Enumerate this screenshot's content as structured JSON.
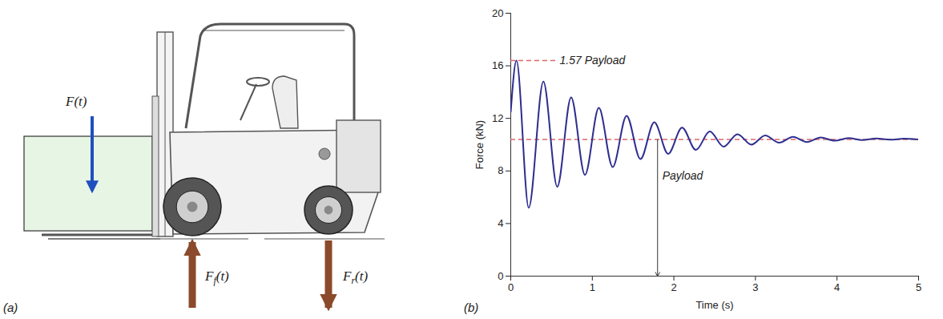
{
  "diagram": {
    "panel_label": "(a)",
    "forces": [
      {
        "symbol": "F",
        "argument": "(t)",
        "color": "#1f4fbf",
        "direction": "down"
      },
      {
        "symbol": "F",
        "subscript": "f",
        "argument": "(t)",
        "color": "#8b4a2b",
        "direction": "up"
      },
      {
        "symbol": "F",
        "subscript": "r",
        "argument": "(t)",
        "color": "#8b4a2b",
        "direction": "down"
      }
    ]
  },
  "chart_data": {
    "type": "line",
    "panel_label": "(b)",
    "x_label": "Time (s)",
    "y_label": "Force (kN)",
    "x": [
      0,
      0.07,
      0.22,
      0.4,
      0.57,
      0.74,
      0.91,
      1.08,
      1.25,
      1.42,
      1.59,
      1.76,
      1.93,
      2.1,
      2.27,
      2.44,
      2.61,
      2.78,
      2.95,
      3.12,
      3.29,
      3.46,
      3.63,
      3.8,
      3.97,
      4.14,
      4.31,
      4.48,
      4.65,
      4.82,
      5.0
    ],
    "series": [
      {
        "color": "#2e2e8f",
        "values": [
          12.5,
          16.4,
          5.2,
          14.8,
          6.8,
          13.6,
          7.7,
          12.8,
          8.3,
          12.2,
          8.9,
          11.7,
          9.3,
          11.3,
          9.6,
          11.0,
          9.85,
          10.8,
          10.0,
          10.7,
          10.15,
          10.6,
          10.2,
          10.55,
          10.3,
          10.5,
          10.35,
          10.48,
          10.38,
          10.45,
          10.4
        ]
      }
    ],
    "reference_lines": [
      {
        "value": 16.4,
        "label": "1.57 Payload",
        "label_x": 0.55,
        "color": "#e06666",
        "line_style": "dashed"
      },
      {
        "value": 10.4,
        "label": "Payload",
        "label_x": 1.8,
        "label_y": 7.6,
        "color": "#e06666",
        "line_style": "dashed"
      }
    ],
    "xlim": [
      0,
      5
    ],
    "xticks": [
      0,
      1,
      2,
      3,
      4,
      5
    ],
    "ylim": [
      0,
      20
    ],
    "yticks": [
      0,
      4,
      8,
      12,
      16,
      20
    ],
    "grid": false
  }
}
